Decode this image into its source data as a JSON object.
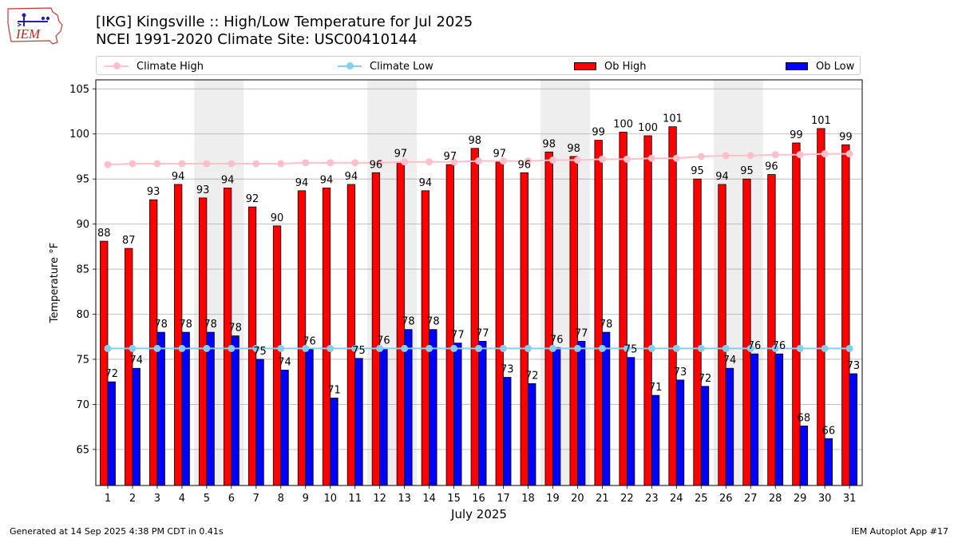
{
  "header": {
    "title_line1": "[IKG] Kingsville :: High/Low Temperature for Jul 2025",
    "title_line2": "NCEI 1991-2020 Climate Site: USC00410144",
    "logo_text": "IEM"
  },
  "footer": {
    "generated": "Generated at 14 Sep 2025 4:38 PM CDT in 0.41s",
    "app": "IEM Autoplot App #17"
  },
  "legend": {
    "climate_high": "Climate High",
    "climate_low": "Climate Low",
    "ob_high": "Ob High",
    "ob_low": "Ob Low"
  },
  "colors": {
    "ob_high": "#ff0000",
    "ob_low": "#0000ff",
    "climate_high": "#ffc0cb",
    "climate_low": "#87ceeb",
    "weekend_shade": "#eeeeee"
  },
  "chart_data": {
    "type": "bar",
    "xlabel": "July 2025",
    "ylabel": "Temperature °F",
    "ylim": [
      61,
      106
    ],
    "yticks": [
      65,
      70,
      75,
      80,
      85,
      90,
      95,
      100,
      105
    ],
    "grid": "horizontal",
    "legend_position": "top",
    "categories": [
      "1",
      "2",
      "3",
      "4",
      "5",
      "6",
      "7",
      "8",
      "9",
      "10",
      "11",
      "12",
      "13",
      "14",
      "15",
      "16",
      "17",
      "18",
      "19",
      "20",
      "21",
      "22",
      "23",
      "24",
      "25",
      "26",
      "27",
      "28",
      "29",
      "30",
      "31"
    ],
    "shaded_day_pairs": [
      [
        5,
        6
      ],
      [
        12,
        13
      ],
      [
        19,
        20
      ],
      [
        26,
        27
      ]
    ],
    "series": [
      {
        "name": "Ob High",
        "kind": "bar",
        "values": [
          88.1,
          87.3,
          92.7,
          94.4,
          92.9,
          94.0,
          91.9,
          89.8,
          93.7,
          94.0,
          94.4,
          95.7,
          96.9,
          93.7,
          96.6,
          98.4,
          96.9,
          95.7,
          98.0,
          97.5,
          99.3,
          100.2,
          99.8,
          100.8,
          95.0,
          94.4,
          95.0,
          95.5,
          99.0,
          100.6,
          98.8
        ],
        "labels": [
          "88",
          "87",
          "93",
          "94",
          "93",
          "94",
          "92",
          "90",
          "94",
          "94",
          "94",
          "96",
          "97",
          "94",
          "97",
          "98",
          "97",
          "96",
          "98",
          "98",
          "99",
          "100",
          "100",
          "101",
          "95",
          "94",
          "95",
          "96",
          "99",
          "101",
          "99"
        ]
      },
      {
        "name": "Ob Low",
        "kind": "bar",
        "values": [
          72.5,
          74.0,
          78.0,
          78.0,
          78.0,
          77.6,
          75.0,
          73.8,
          76.1,
          70.7,
          75.1,
          76.2,
          78.3,
          78.3,
          76.8,
          77.0,
          73.0,
          72.3,
          76.3,
          77.0,
          78.0,
          75.2,
          71.0,
          72.7,
          72.0,
          74.0,
          75.6,
          75.6,
          67.6,
          66.2,
          73.4
        ],
        "labels": [
          "72",
          "74",
          "78",
          "78",
          "78",
          "78",
          "75",
          "74",
          "76",
          "71",
          "75",
          "76",
          "78",
          "78",
          "77",
          "77",
          "73",
          "72",
          "76",
          "77",
          "78",
          "75",
          "71",
          "73",
          "72",
          "74",
          "76",
          "76",
          "68",
          "66",
          "73"
        ]
      },
      {
        "name": "Climate High",
        "kind": "line",
        "values": [
          96.6,
          96.7,
          96.7,
          96.7,
          96.7,
          96.7,
          96.7,
          96.7,
          96.8,
          96.8,
          96.8,
          96.8,
          96.9,
          96.9,
          96.9,
          97.0,
          97.0,
          97.0,
          97.1,
          97.1,
          97.2,
          97.2,
          97.3,
          97.3,
          97.5,
          97.6,
          97.6,
          97.7,
          97.7,
          97.8,
          97.8
        ]
      },
      {
        "name": "Climate Low",
        "kind": "line",
        "values": [
          76.2,
          76.2,
          76.2,
          76.2,
          76.2,
          76.2,
          76.2,
          76.2,
          76.2,
          76.2,
          76.2,
          76.2,
          76.2,
          76.2,
          76.2,
          76.2,
          76.2,
          76.2,
          76.2,
          76.2,
          76.2,
          76.2,
          76.2,
          76.2,
          76.2,
          76.2,
          76.2,
          76.2,
          76.2,
          76.2,
          76.2
        ]
      }
    ]
  }
}
